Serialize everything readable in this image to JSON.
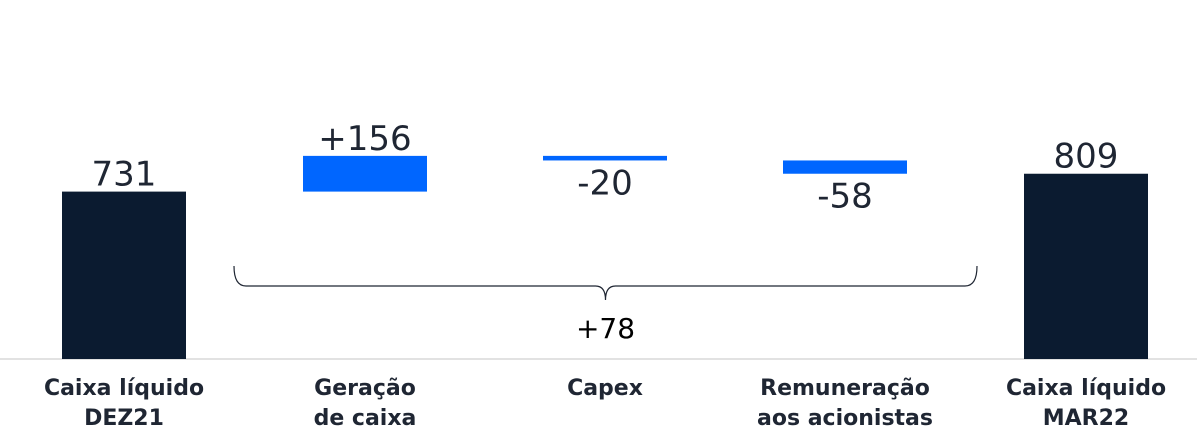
{
  "chart_data": {
    "type": "bar",
    "subtype": "waterfall",
    "categories": [
      [
        "Caixa líquido",
        "DEZ21"
      ],
      [
        "Geração",
        "de caixa"
      ],
      [
        "Capex"
      ],
      [
        "Remuneração",
        "aos acionistas"
      ],
      [
        "Caixa líquido",
        "MAR22"
      ]
    ],
    "values": [
      731,
      156,
      -20,
      -58,
      809
    ],
    "value_labels": [
      "731",
      "+156",
      "-20",
      "-58",
      "809"
    ],
    "bar_kinds": [
      "total",
      "delta",
      "delta",
      "delta",
      "total"
    ],
    "bracket": {
      "from_index": 1,
      "to_index": 3,
      "label": "+78"
    },
    "colors": {
      "total": "#0b1b30",
      "delta": "#0066ff",
      "baseline": "#d9d9d9",
      "text": "#1f2633",
      "bracket": "#1f2633"
    },
    "axes_visible": false,
    "grid": false,
    "legend": "none"
  }
}
